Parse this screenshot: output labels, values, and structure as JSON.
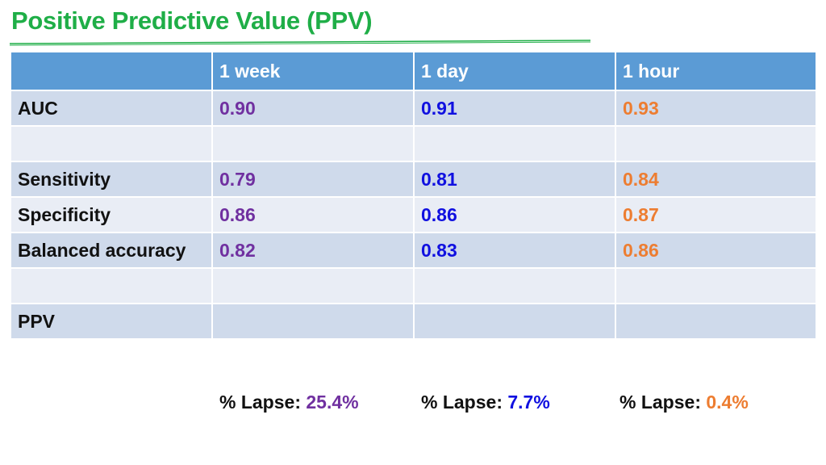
{
  "title": "Positive Predictive Value (PPV)",
  "colors": {
    "title": "#1fae47",
    "header_bg": "#5b9bd5",
    "row_dark": "#cfdaeb",
    "row_light": "#e9edf5",
    "week": "#7030a0",
    "day": "#1010e0",
    "hour": "#ed7d31"
  },
  "table": {
    "columns": [
      "",
      "1 week",
      "1 day",
      "1 hour"
    ],
    "rows": [
      {
        "label": "AUC",
        "values": [
          "0.90",
          "0.91",
          "0.93"
        ]
      },
      {
        "label": "",
        "values": [
          "",
          "",
          ""
        ]
      },
      {
        "label": "Sensitivity",
        "values": [
          "0.79",
          "0.81",
          "0.84"
        ]
      },
      {
        "label": "Specificity",
        "values": [
          "0.86",
          "0.86",
          "0.87"
        ]
      },
      {
        "label": "Balanced accuracy",
        "values": [
          "0.82",
          "0.83",
          "0.86"
        ]
      },
      {
        "label": "",
        "values": [
          "",
          "",
          ""
        ]
      },
      {
        "label": "PPV",
        "values": [
          "",
          "",
          ""
        ]
      }
    ]
  },
  "lapse": [
    {
      "label": "% Lapse: ",
      "value": "25.4%"
    },
    {
      "label": "% Lapse: ",
      "value": "7.7%"
    },
    {
      "label": "% Lapse: ",
      "value": "0.4%"
    }
  ]
}
